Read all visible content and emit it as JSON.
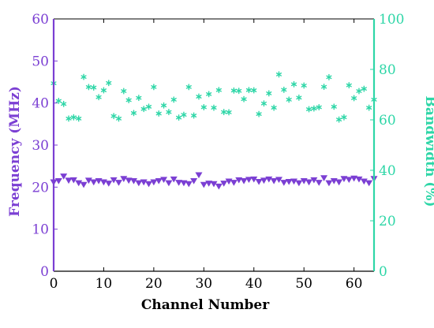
{
  "colors": {
    "frequency": "#7b3fd3",
    "bandwidth": "#2ed6a7",
    "axis": "#000000"
  },
  "chart_data": {
    "type": "scatter",
    "title": "",
    "xlabel": "Channel Number",
    "ylabel_left": "Frequency (MHz)",
    "ylabel_right": "Bandwidth (%)",
    "xlim": [
      0,
      64
    ],
    "ylim_left": [
      0,
      60
    ],
    "ylim_right": [
      0,
      100
    ],
    "xticks": [
      0,
      10,
      20,
      30,
      40,
      50,
      60
    ],
    "yticks_left": [
      0,
      10,
      20,
      30,
      40,
      50,
      60
    ],
    "yticks_right": [
      0,
      20,
      40,
      60,
      80,
      100
    ],
    "grid": false,
    "legend": "none",
    "series": [
      {
        "axis": "left",
        "marker": "triangle-down",
        "color": "#7b3fd3",
        "x": [
          0,
          1,
          2,
          3,
          4,
          5,
          6,
          7,
          8,
          9,
          10,
          11,
          12,
          13,
          14,
          15,
          16,
          17,
          18,
          19,
          20,
          21,
          22,
          23,
          24,
          25,
          26,
          27,
          28,
          29,
          30,
          31,
          32,
          33,
          34,
          35,
          36,
          37,
          38,
          39,
          40,
          41,
          42,
          43,
          44,
          45,
          46,
          47,
          48,
          49,
          50,
          51,
          52,
          53,
          54,
          55,
          56,
          57,
          58,
          59,
          60,
          61,
          62,
          63,
          64
        ],
        "y": [
          21.2,
          21.5,
          22.6,
          21.6,
          21.7,
          21.0,
          20.6,
          21.6,
          21.2,
          21.5,
          21.2,
          20.9,
          21.7,
          21.1,
          22.0,
          21.6,
          21.5,
          21.0,
          21.2,
          20.8,
          21.2,
          21.5,
          21.8,
          21.0,
          21.9,
          21.1,
          21.0,
          20.8,
          21.5,
          22.9,
          20.6,
          20.9,
          20.8,
          20.2,
          20.9,
          21.4,
          21.1,
          21.7,
          21.5,
          21.8,
          21.9,
          21.3,
          21.6,
          21.9,
          21.5,
          21.8,
          21.1,
          21.3,
          21.4,
          21.0,
          21.5,
          21.2,
          21.7,
          21.1,
          22.2,
          21.0,
          21.5,
          21.2,
          22.0,
          21.8,
          22.1,
          21.9,
          21.4,
          21.0,
          22.0
        ]
      },
      {
        "axis": "right",
        "marker": "asterisk",
        "color": "#2ed6a7",
        "x": [
          0,
          1,
          2,
          3,
          4,
          5,
          6,
          7,
          8,
          9,
          10,
          11,
          12,
          13,
          14,
          15,
          16,
          17,
          18,
          19,
          20,
          21,
          22,
          23,
          24,
          25,
          26,
          27,
          28,
          29,
          30,
          31,
          32,
          33,
          34,
          35,
          36,
          37,
          38,
          39,
          40,
          41,
          42,
          43,
          44,
          45,
          46,
          47,
          48,
          49,
          50,
          51,
          52,
          53,
          54,
          55,
          56,
          57,
          58,
          59,
          60,
          61,
          62,
          63,
          64
        ],
        "y": [
          74.5,
          67.5,
          66.3,
          60.5,
          61.0,
          60.5,
          77.0,
          73.0,
          72.8,
          69.0,
          71.7,
          74.6,
          61.5,
          60.5,
          71.4,
          67.8,
          62.7,
          68.7,
          64.3,
          65.2,
          73.0,
          62.5,
          65.7,
          63.1,
          68.0,
          60.9,
          62.0,
          73.0,
          61.7,
          69.2,
          65.0,
          70.2,
          64.8,
          71.8,
          63.1,
          63.0,
          71.6,
          71.5,
          68.2,
          71.8,
          71.7,
          62.3,
          66.5,
          70.5,
          64.8,
          78.0,
          71.9,
          68.0,
          74.1,
          68.8,
          73.6,
          64.2,
          64.5,
          65.0,
          73.1,
          76.9,
          65.2,
          60.1,
          61.0,
          73.7,
          68.6,
          71.4,
          72.3,
          64.8,
          68.0
        ]
      }
    ]
  }
}
